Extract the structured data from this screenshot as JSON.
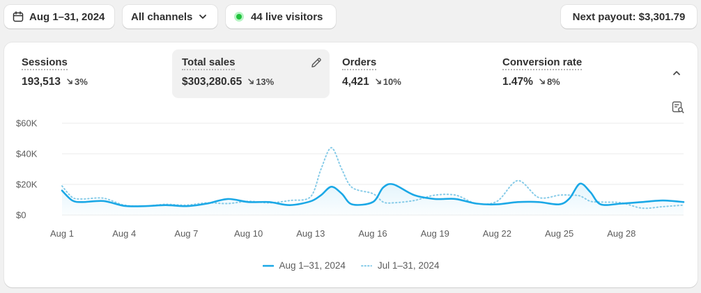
{
  "toolbar": {
    "date_range": "Aug 1–31, 2024",
    "channels": "All channels",
    "live_visitors": "44 live visitors",
    "payout": "Next payout: $3,301.79"
  },
  "metrics": [
    {
      "label": "Sessions",
      "value": "193,513",
      "change": "3%"
    },
    {
      "label": "Total sales",
      "value": "$303,280.65",
      "change": "13%"
    },
    {
      "label": "Orders",
      "value": "4,421",
      "change": "10%"
    },
    {
      "label": "Conversion rate",
      "value": "1.47%",
      "change": "8%"
    }
  ],
  "colors": {
    "accent": "#1ba8e6",
    "previous": "#86cbe8",
    "grid": "#ebebeb",
    "live": "#21c23d"
  },
  "icons": {
    "date": "calendar-icon",
    "channels": "chevron-down-icon",
    "live": "live-dot-icon",
    "edit": "pencil-icon",
    "collapse": "chevron-up-icon",
    "chart": "chart-search-icon",
    "trend": "arrow-down-right-icon"
  },
  "chart_data": {
    "type": "line",
    "title": "",
    "xlabel": "",
    "ylabel": "",
    "y_ticks": [
      "$0",
      "$20K",
      "$40K",
      "$60K"
    ],
    "ylim": [
      0,
      60000
    ],
    "x_ticks": [
      "Aug 1",
      "Aug 4",
      "Aug 7",
      "Aug 10",
      "Aug 13",
      "Aug 16",
      "Aug 19",
      "Aug 22",
      "Aug 25",
      "Aug 28"
    ],
    "x_tick_days": [
      1,
      4,
      7,
      10,
      13,
      16,
      19,
      22,
      25,
      28
    ],
    "grid": true,
    "legend_position": "bottom",
    "x": [
      1,
      1.5,
      2,
      3,
      4,
      5,
      6,
      7,
      8,
      9,
      10,
      11,
      12,
      13,
      13.5,
      14,
      14.5,
      15,
      16,
      16.5,
      17,
      18,
      19,
      20,
      21,
      22,
      23,
      24,
      25,
      25.5,
      26,
      26.5,
      27,
      28,
      29,
      30,
      31
    ],
    "series": [
      {
        "name": "Aug 1–31, 2024",
        "style": "solid",
        "values": [
          16000,
          9500,
          8500,
          9200,
          6000,
          5800,
          6500,
          5800,
          7500,
          10500,
          8500,
          8500,
          6500,
          9000,
          13000,
          18500,
          14000,
          7000,
          8500,
          18000,
          20000,
          13000,
          10500,
          10500,
          7500,
          7000,
          8500,
          8500,
          7000,
          11000,
          20500,
          15000,
          7000,
          7500,
          8500,
          9500,
          8500
        ]
      },
      {
        "name": "Jul 1–31, 2024",
        "style": "dotted",
        "values": [
          19000,
          11500,
          10500,
          11000,
          6500,
          5800,
          7000,
          6500,
          8000,
          7500,
          9000,
          8000,
          9500,
          12000,
          30000,
          44000,
          30000,
          18000,
          14000,
          8500,
          8000,
          9500,
          13000,
          13000,
          7500,
          9000,
          22500,
          11500,
          13000,
          13000,
          12500,
          9000,
          8500,
          8000,
          4500,
          5500,
          6500
        ]
      }
    ]
  }
}
